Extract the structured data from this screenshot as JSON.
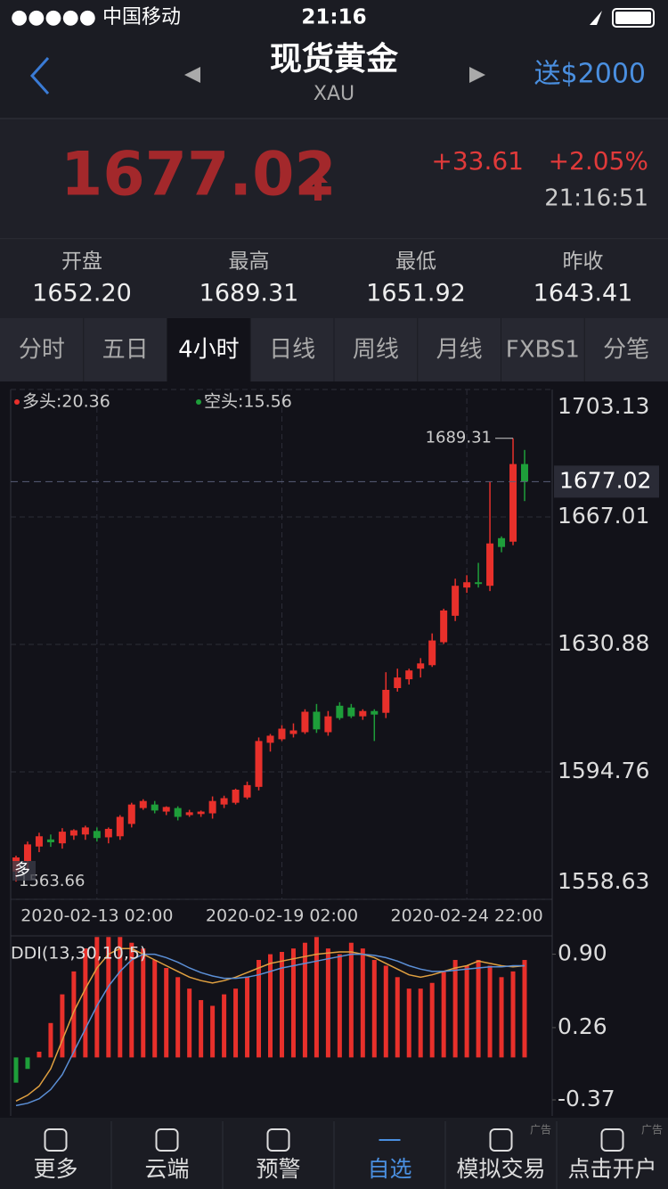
{
  "status_bar": {
    "carrier": "●●●●● 中国移动",
    "time": "21:16"
  },
  "header": {
    "title": "现货黄金",
    "symbol": "XAU",
    "promo": "送$2000"
  },
  "quote": {
    "price": "1677.02",
    "change": "+33.61",
    "change_pct": "+2.05%",
    "time": "21:16:51"
  },
  "stats": [
    {
      "label": "开盘",
      "value": "1652.20"
    },
    {
      "label": "最高",
      "value": "1689.31"
    },
    {
      "label": "最低",
      "value": "1651.92"
    },
    {
      "label": "昨收",
      "value": "1643.41"
    }
  ],
  "tabs": [
    "分时",
    "五日",
    "4小时",
    "日线",
    "周线",
    "月线",
    "FXBS1",
    "分笔"
  ],
  "active_tab": 2,
  "chart_data": [
    {
      "type": "candlestick",
      "long_label": "多头:20.36",
      "short_label": "空头:15.56",
      "signal": "多",
      "categories": [
        null,
        null,
        null,
        null,
        null,
        null,
        null,
        "2020-02-13 02:00",
        null,
        null,
        null,
        null,
        null,
        null,
        null,
        null,
        null,
        null,
        null,
        null,
        null,
        null,
        null,
        "2020-02-19 02:00",
        null,
        null,
        null,
        null,
        null,
        null,
        null,
        null,
        null,
        null,
        null,
        null,
        null,
        null,
        null,
        "2020-02-24 22:00",
        null,
        null,
        null,
        null,
        null
      ],
      "open": [
        1566.5,
        1569.5,
        1573.6,
        1575.6,
        1574.5,
        1576.7,
        1577.0,
        1578.0,
        1576.2,
        1576.5,
        1580.0,
        1584.5,
        1585.5,
        1583.5,
        1584.5,
        1582.5,
        1582.8,
        1583.0,
        1585.5,
        1586.0,
        1587.5,
        1590.5,
        1603.0,
        1604.0,
        1605.5,
        1606.0,
        1611.8,
        1606.0,
        1613.5,
        1613.0,
        1610.5,
        1612.0,
        1611.5,
        1618.5,
        1621.0,
        1624.0,
        1625.0,
        1631.5,
        1639.0,
        1647.0,
        1648.5,
        1647.5,
        1661.0,
        1660.0,
        1682.0
      ],
      "high": [
        1571.0,
        1575.0,
        1577.5,
        1577.0,
        1578.8,
        1578.5,
        1579.5,
        1579.0,
        1579.0,
        1582.5,
        1586.0,
        1587.0,
        1586.5,
        1585.0,
        1585.0,
        1584.0,
        1583.8,
        1587.8,
        1588.0,
        1590.0,
        1592.0,
        1604.5,
        1605.5,
        1608.0,
        1608.5,
        1612.5,
        1614.0,
        1612.0,
        1614.5,
        1614.0,
        1612.5,
        1612.5,
        1623.0,
        1624.0,
        1624.0,
        1627.0,
        1634.0,
        1641.0,
        1649.5,
        1650.5,
        1654.0,
        1677.0,
        1661.5,
        1689.31,
        1686.0
      ],
      "low": [
        1563.66,
        1567.0,
        1572.0,
        1573.5,
        1573.0,
        1575.5,
        1575.5,
        1575.0,
        1574.5,
        1575.5,
        1579.0,
        1584.0,
        1583.0,
        1582.5,
        1581.0,
        1582.0,
        1582.0,
        1581.5,
        1584.5,
        1585.5,
        1587.0,
        1589.5,
        1600.5,
        1603.5,
        1604.5,
        1605.5,
        1605.8,
        1605.0,
        1609.5,
        1610.0,
        1609.5,
        1603.5,
        1610.0,
        1617.5,
        1619.5,
        1621.5,
        1624.5,
        1631.0,
        1637.5,
        1645.5,
        1647.0,
        1646.0,
        1657.0,
        1659.0,
        1671.5
      ],
      "close": [
        1570.5,
        1574.2,
        1576.5,
        1574.8,
        1577.8,
        1578.2,
        1579.0,
        1576.0,
        1578.6,
        1582.0,
        1585.5,
        1586.5,
        1583.8,
        1584.8,
        1582.0,
        1583.3,
        1583.5,
        1586.5,
        1587.3,
        1589.7,
        1591.0,
        1603.5,
        1605.0,
        1607.0,
        1606.5,
        1611.8,
        1606.8,
        1610.5,
        1610.0,
        1610.5,
        1612.0,
        1611.0,
        1618.0,
        1621.5,
        1623.5,
        1625.5,
        1632.0,
        1640.5,
        1647.5,
        1648.5,
        1648.0,
        1659.5,
        1658.5,
        1682.0,
        1677.02
      ],
      "ylim": [
        1558.63,
        1703.13
      ],
      "yticks": [
        1558.63,
        1594.76,
        1630.88,
        1667.01,
        1703.13
      ],
      "up_color": "#e8302b",
      "down_color": "#1e9e3a",
      "grid": true
    },
    {
      "type": "bar",
      "title": "DDI(13,30,10,5)",
      "values": [
        -0.22,
        -0.1,
        0.05,
        0.3,
        0.55,
        0.75,
        0.95,
        1.05,
        1.05,
        1.05,
        1.0,
        0.95,
        0.85,
        0.78,
        0.7,
        0.6,
        0.5,
        0.45,
        0.55,
        0.6,
        0.7,
        0.85,
        0.9,
        0.92,
        0.95,
        1.0,
        1.05,
        0.95,
        0.9,
        1.0,
        0.95,
        0.85,
        0.8,
        0.7,
        0.6,
        0.6,
        0.65,
        0.75,
        0.85,
        0.8,
        0.85,
        0.8,
        0.7,
        0.75,
        0.85
      ],
      "color": "#e8302b",
      "negative_color": "#1e9e3a",
      "lines": [
        {
          "color": "#e0a040",
          "values": [
            -0.38,
            -0.33,
            -0.25,
            -0.1,
            0.15,
            0.4,
            0.6,
            0.78,
            0.9,
            0.95,
            0.95,
            0.9,
            0.85,
            0.8,
            0.75,
            0.7,
            0.67,
            0.65,
            0.67,
            0.7,
            0.74,
            0.78,
            0.82,
            0.84,
            0.86,
            0.88,
            0.9,
            0.91,
            0.92,
            0.92,
            0.9,
            0.87,
            0.82,
            0.77,
            0.72,
            0.7,
            0.72,
            0.75,
            0.78,
            0.8,
            0.84,
            0.82,
            0.8,
            0.79,
            0.8
          ]
        },
        {
          "color": "#5b8fd6",
          "values": [
            -0.42,
            -0.4,
            -0.36,
            -0.28,
            -0.15,
            0.05,
            0.25,
            0.45,
            0.62,
            0.75,
            0.85,
            0.9,
            0.9,
            0.87,
            0.83,
            0.78,
            0.74,
            0.71,
            0.69,
            0.69,
            0.7,
            0.72,
            0.75,
            0.78,
            0.8,
            0.82,
            0.84,
            0.86,
            0.88,
            0.9,
            0.9,
            0.89,
            0.87,
            0.84,
            0.8,
            0.77,
            0.75,
            0.75,
            0.76,
            0.77,
            0.78,
            0.79,
            0.79,
            0.8,
            0.8
          ]
        }
      ],
      "ylim": [
        -0.51,
        1.06
      ],
      "yticks": [
        {
          "value": -0.37,
          "label": "-0.37"
        },
        {
          "value": 0.26,
          "label": "0.26"
        },
        {
          "value": 0.9,
          "label": "0.90"
        }
      ]
    }
  ],
  "nav": [
    {
      "label": "更多"
    },
    {
      "label": "云端"
    },
    {
      "label": "预警"
    },
    {
      "label": "自选"
    },
    {
      "label": "模拟交易",
      "ad": "广告"
    },
    {
      "label": "点击开户",
      "ad": "广告"
    }
  ],
  "active_nav": 3
}
